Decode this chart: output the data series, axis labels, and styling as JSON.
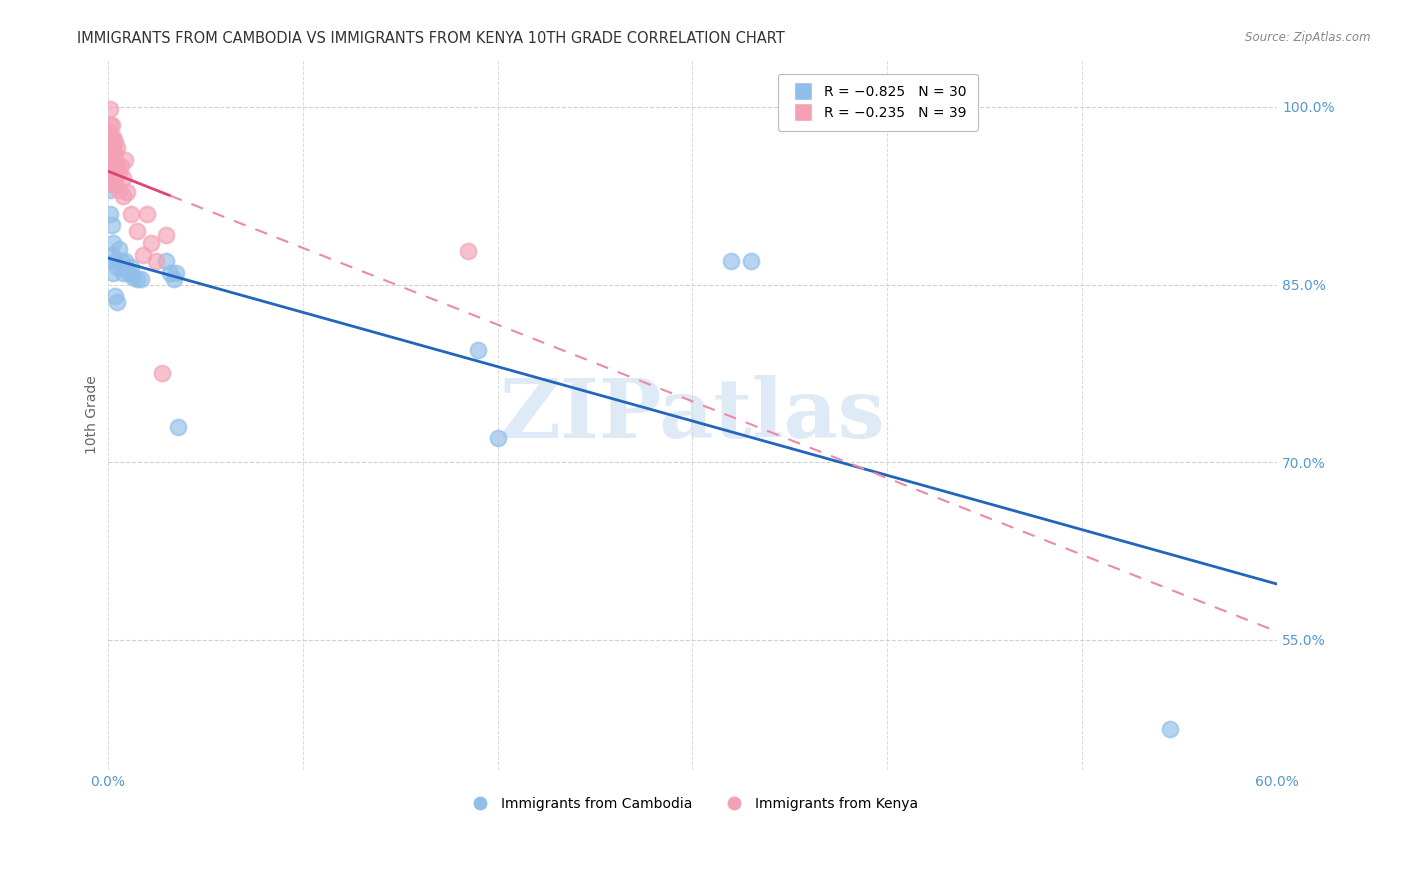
{
  "title": "IMMIGRANTS FROM CAMBODIA VS IMMIGRANTS FROM KENYA 10TH GRADE CORRELATION CHART",
  "source": "Source: ZipAtlas.com",
  "ylabel": "10th Grade",
  "watermark": "ZIPatlas",
  "cambodia_x": [
    0.001,
    0.001,
    0.002,
    0.002,
    0.003,
    0.003,
    0.004,
    0.004,
    0.005,
    0.005,
    0.006,
    0.007,
    0.008,
    0.009,
    0.01,
    0.011,
    0.012,
    0.013,
    0.015,
    0.017,
    0.03,
    0.032,
    0.034,
    0.035,
    0.036,
    0.19,
    0.2,
    0.32,
    0.33,
    0.545
  ],
  "cambodia_y": [
    0.93,
    0.91,
    0.9,
    0.875,
    0.885,
    0.86,
    0.87,
    0.84,
    0.865,
    0.835,
    0.88,
    0.87,
    0.86,
    0.87,
    0.862,
    0.86,
    0.865,
    0.856,
    0.855,
    0.855,
    0.87,
    0.86,
    0.855,
    0.86,
    0.73,
    0.795,
    0.72,
    0.87,
    0.87,
    0.475
  ],
  "kenya_x": [
    0.0,
    0.0,
    0.001,
    0.001,
    0.001,
    0.001,
    0.001,
    0.001,
    0.001,
    0.002,
    0.002,
    0.002,
    0.002,
    0.002,
    0.003,
    0.003,
    0.003,
    0.003,
    0.004,
    0.004,
    0.004,
    0.005,
    0.005,
    0.006,
    0.006,
    0.007,
    0.008,
    0.008,
    0.009,
    0.01,
    0.012,
    0.015,
    0.018,
    0.02,
    0.022,
    0.025,
    0.028,
    0.03,
    0.185
  ],
  "kenya_y": [
    0.98,
    0.972,
    0.998,
    0.985,
    0.975,
    0.965,
    0.955,
    0.945,
    0.935,
    0.985,
    0.972,
    0.96,
    0.948,
    0.938,
    0.975,
    0.965,
    0.955,
    0.935,
    0.97,
    0.96,
    0.94,
    0.965,
    0.95,
    0.945,
    0.93,
    0.95,
    0.94,
    0.925,
    0.955,
    0.928,
    0.91,
    0.895,
    0.875,
    0.91,
    0.885,
    0.87,
    0.775,
    0.892,
    0.878
  ],
  "cambodia_color": "#90BEE8",
  "kenya_color": "#F4A0B5",
  "cambodia_line_color": "#2266BB",
  "kenya_solid_color": "#DD4477",
  "kenya_dash_color": "#EE88AA",
  "title_color": "#333333",
  "right_tick_color": "#5599CC",
  "grid_color": "#CCCCCC",
  "watermark_color": "#C8DCEF",
  "source_color": "#888888",
  "background_color": "#FFFFFF",
  "xlim_min": 0.0,
  "xlim_max": 0.6,
  "ylim_min": 0.44,
  "ylim_max": 1.04,
  "ytick_values": [
    1.0,
    0.85,
    0.7,
    0.55
  ],
  "ytick_labels": [
    "100.0%",
    "85.0%",
    "70.0%",
    "55.0%"
  ],
  "xtick_values": [
    0.0,
    0.1,
    0.2,
    0.3,
    0.4,
    0.5,
    0.6
  ],
  "xtick_show": [
    0.0,
    0.6
  ],
  "xtick_labels_show": [
    "0.0%",
    "60.0%"
  ],
  "title_fontsize": 10.5,
  "source_fontsize": 8.5,
  "axis_label_fontsize": 10,
  "tick_fontsize": 10,
  "legend_fontsize": 10,
  "watermark_fontsize": 60
}
